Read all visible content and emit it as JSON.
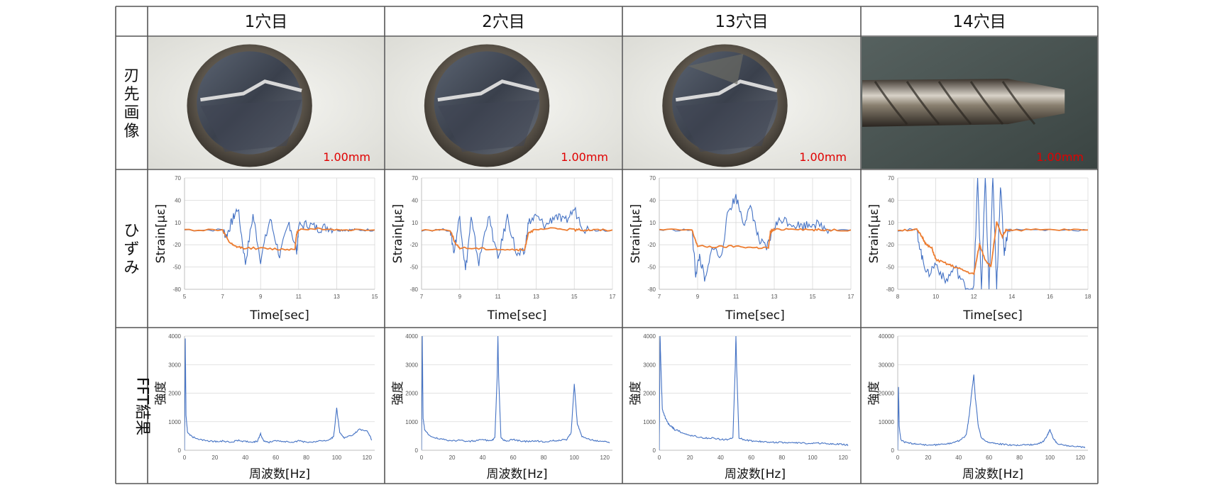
{
  "table": {
    "columns": [
      "1穴目",
      "2穴目",
      "13穴目",
      "14穴目"
    ],
    "rows": [
      "刃先画像",
      "ひずみ",
      "FFT結果"
    ],
    "scale_labels": [
      "1.00mm",
      "1.00mm",
      "1.00mm",
      "1.00mm"
    ]
  },
  "colors": {
    "blue": "#4472c4",
    "orange": "#ed7d31",
    "grid": "#d9d9d9",
    "scale": "#e00000"
  },
  "chart_data": [
    {
      "type": "line",
      "panel": "strain",
      "hole": "1穴目",
      "xlabel": "Time[sec]",
      "ylabel": "Strain[με]",
      "xticks": [
        5,
        7,
        9,
        11,
        13,
        15
      ],
      "yticks": [
        70,
        40,
        10,
        -20,
        -50,
        -80
      ],
      "xlim": [
        5,
        15
      ],
      "ylim": [
        -80,
        70
      ],
      "series": [
        {
          "color": "blue",
          "x": [
            5,
            7,
            7.2,
            7.5,
            7.8,
            8.2,
            8.6,
            9,
            9.5,
            10,
            10.5,
            10.9,
            11,
            11.5,
            12,
            12.5,
            13,
            13.5,
            14,
            15
          ],
          "y": [
            0,
            0,
            -8,
            12,
            30,
            -45,
            20,
            -40,
            15,
            -35,
            10,
            -30,
            5,
            8,
            2,
            4,
            0,
            0,
            0,
            0
          ]
        },
        {
          "color": "orange",
          "x": [
            5,
            7,
            7.3,
            7.6,
            8,
            9,
            10,
            10.8,
            10.9,
            11,
            12,
            13,
            15
          ],
          "y": [
            0,
            0,
            -15,
            -22,
            -24,
            -25,
            -26,
            -26,
            -5,
            0,
            2,
            0,
            0
          ]
        }
      ]
    },
    {
      "type": "line",
      "panel": "strain",
      "hole": "2穴目",
      "xlabel": "Time[sec]",
      "ylabel": "Strain[με]",
      "xticks": [
        7,
        9,
        11,
        13,
        15,
        17
      ],
      "yticks": [
        70,
        40,
        10,
        -20,
        -50,
        -80
      ],
      "xlim": [
        7,
        17
      ],
      "ylim": [
        -80,
        70
      ],
      "series": [
        {
          "color": "blue",
          "x": [
            7,
            8.5,
            8.7,
            9,
            9.3,
            9.6,
            10,
            10.5,
            11,
            11.5,
            12,
            12.4,
            12.6,
            13,
            13.5,
            14,
            14.5,
            15,
            15.5,
            16,
            17
          ],
          "y": [
            0,
            0,
            -30,
            20,
            -55,
            15,
            -45,
            20,
            -40,
            18,
            -35,
            -30,
            10,
            18,
            5,
            20,
            10,
            28,
            2,
            0,
            0
          ]
        },
        {
          "color": "orange",
          "x": [
            7,
            8.5,
            8.8,
            9,
            10,
            11,
            12,
            12.4,
            12.6,
            13,
            14,
            15,
            15.5,
            16,
            17
          ],
          "y": [
            0,
            0,
            -20,
            -24,
            -25,
            -26,
            -27,
            -27,
            -3,
            0,
            2,
            0,
            0,
            0,
            0
          ]
        }
      ]
    },
    {
      "type": "line",
      "panel": "strain",
      "hole": "13穴目",
      "xlabel": "Time[sec]",
      "ylabel": "Strain[με]",
      "xticks": [
        7,
        9,
        11,
        13,
        15,
        17
      ],
      "yticks": [
        70,
        40,
        10,
        -20,
        -50,
        -80
      ],
      "xlim": [
        7,
        17
      ],
      "ylim": [
        -80,
        70
      ],
      "series": [
        {
          "color": "blue",
          "x": [
            7,
            8.7,
            8.9,
            9.1,
            9.4,
            9.8,
            10.2,
            10.6,
            11,
            11.4,
            11.8,
            12.2,
            12.6,
            13,
            13.4,
            14,
            14.5,
            15,
            15.6,
            16,
            17
          ],
          "y": [
            0,
            0,
            -60,
            -35,
            -70,
            -20,
            -40,
            25,
            45,
            10,
            30,
            -15,
            -25,
            5,
            15,
            8,
            5,
            10,
            3,
            0,
            0
          ]
        },
        {
          "color": "orange",
          "x": [
            7,
            8.7,
            9,
            10,
            11,
            12,
            12.7,
            12.8,
            13,
            14,
            15,
            15.6,
            17
          ],
          "y": [
            0,
            0,
            -22,
            -23,
            -22,
            -24,
            -24,
            -2,
            0,
            2,
            0,
            0,
            0
          ]
        }
      ]
    },
    {
      "type": "line",
      "panel": "strain",
      "hole": "14穴目",
      "xlabel": "Time[sec]",
      "ylabel": "Strain[με]",
      "xticks": [
        8,
        10,
        12,
        14,
        16,
        18
      ],
      "yticks": [
        70,
        40,
        10,
        -20,
        -50,
        -80
      ],
      "xlim": [
        8,
        18
      ],
      "ylim": [
        -80,
        70
      ],
      "series": [
        {
          "color": "blue",
          "x": [
            8,
            9,
            9.3,
            9.6,
            10,
            10.5,
            11,
            11.5,
            12,
            12.2,
            12.4,
            12.6,
            12.8,
            13,
            13.2,
            13.4,
            13.6,
            13.8,
            14,
            16,
            18
          ],
          "y": [
            0,
            0,
            -40,
            -60,
            -45,
            -70,
            -50,
            -75,
            -80,
            70,
            -80,
            70,
            -80,
            70,
            -80,
            60,
            -30,
            0,
            0,
            0,
            0
          ]
        },
        {
          "color": "orange",
          "x": [
            8,
            9,
            9.3,
            9.5,
            9.8,
            10,
            10.5,
            11,
            11.5,
            12,
            12.3,
            12.6,
            12.9,
            13.2,
            13.5,
            13.7,
            14,
            16,
            18
          ],
          "y": [
            0,
            0,
            -10,
            -20,
            -25,
            -40,
            -45,
            -50,
            -55,
            -60,
            -20,
            -40,
            -50,
            10,
            -10,
            0,
            0,
            0,
            0
          ]
        }
      ]
    },
    {
      "type": "line",
      "panel": "fft",
      "hole": "1穴目",
      "xlabel": "周波数[Hz]",
      "ylabel": "強度",
      "xticks": [
        0,
        20,
        40,
        60,
        80,
        100,
        120
      ],
      "yticks": [
        0,
        1000,
        2000,
        3000,
        4000
      ],
      "xlim": [
        0,
        125
      ],
      "ylim": [
        0,
        4000
      ],
      "series": [
        {
          "color": "blue",
          "x": [
            0,
            0.5,
            1,
            2,
            5,
            10,
            15,
            20,
            25,
            30,
            35,
            40,
            45,
            48,
            50,
            52,
            55,
            60,
            65,
            70,
            75,
            80,
            85,
            90,
            95,
            98,
            100,
            102,
            105,
            110,
            115,
            120,
            123
          ],
          "y": [
            0,
            3900,
            1200,
            600,
            450,
            350,
            300,
            280,
            300,
            250,
            320,
            280,
            250,
            300,
            550,
            300,
            250,
            300,
            280,
            250,
            300,
            260,
            280,
            300,
            320,
            450,
            1450,
            600,
            400,
            500,
            700,
            650,
            350
          ]
        }
      ]
    },
    {
      "type": "line",
      "panel": "fft",
      "hole": "2穴目",
      "xlabel": "周波数[Hz]",
      "ylabel": "強度",
      "xticks": [
        0,
        20,
        40,
        60,
        80,
        100,
        120
      ],
      "yticks": [
        0,
        1000,
        2000,
        3000,
        4000
      ],
      "xlim": [
        0,
        125
      ],
      "ylim": [
        0,
        4000
      ],
      "series": [
        {
          "color": "blue",
          "x": [
            0,
            0.5,
            1,
            2,
            5,
            10,
            15,
            20,
            25,
            30,
            35,
            40,
            45,
            48,
            49.5,
            50,
            50.5,
            52,
            55,
            60,
            65,
            70,
            75,
            80,
            85,
            90,
            95,
            98,
            100,
            102,
            105,
            110,
            115,
            120,
            123
          ],
          "y": [
            0,
            4000,
            1100,
            700,
            500,
            400,
            350,
            300,
            320,
            280,
            300,
            350,
            300,
            400,
            2500,
            4000,
            2500,
            400,
            300,
            350,
            300,
            280,
            300,
            270,
            300,
            320,
            350,
            600,
            2300,
            900,
            450,
            350,
            300,
            280,
            250
          ]
        }
      ]
    },
    {
      "type": "line",
      "panel": "fft",
      "hole": "13穴目",
      "xlabel": "周波数[Hz]",
      "ylabel": "強度",
      "xticks": [
        0,
        20,
        40,
        60,
        80,
        100,
        120
      ],
      "yticks": [
        0,
        1000,
        2000,
        3000,
        4000
      ],
      "xlim": [
        0,
        125
      ],
      "ylim": [
        0,
        4000
      ],
      "series": [
        {
          "color": "blue",
          "x": [
            0,
            0.5,
            1,
            2,
            4,
            6,
            8,
            10,
            15,
            20,
            25,
            30,
            35,
            40,
            45,
            48,
            49.5,
            50,
            50.5,
            52,
            55,
            60,
            65,
            70,
            75,
            80,
            85,
            90,
            95,
            100,
            105,
            110,
            115,
            120,
            123
          ],
          "y": [
            0,
            4000,
            3000,
            1400,
            1100,
            900,
            800,
            700,
            600,
            500,
            450,
            400,
            400,
            350,
            350,
            400,
            2800,
            4000,
            2800,
            400,
            350,
            300,
            280,
            260,
            250,
            250,
            240,
            230,
            220,
            210,
            220,
            200,
            190,
            180,
            150
          ]
        }
      ]
    },
    {
      "type": "line",
      "panel": "fft",
      "hole": "14穴目",
      "xlabel": "周波数[Hz]",
      "ylabel": "強度",
      "xticks": [
        0,
        20,
        40,
        60,
        80,
        100,
        120
      ],
      "yticks": [
        0,
        10000,
        20000,
        30000,
        40000
      ],
      "xlim": [
        0,
        125
      ],
      "ylim": [
        0,
        40000
      ],
      "series": [
        {
          "color": "blue",
          "x": [
            0,
            0.5,
            1,
            2,
            5,
            10,
            15,
            20,
            25,
            30,
            35,
            40,
            45,
            47,
            49,
            50,
            51,
            53,
            55,
            60,
            65,
            70,
            75,
            80,
            85,
            90,
            95,
            98,
            100,
            102,
            105,
            110,
            115,
            120,
            123
          ],
          "y": [
            0,
            22000,
            8000,
            3500,
            2500,
            2000,
            1800,
            1500,
            1600,
            1800,
            2200,
            3000,
            5000,
            12000,
            22000,
            26000,
            18000,
            8000,
            4000,
            2500,
            2000,
            1800,
            1500,
            1500,
            1600,
            1800,
            2500,
            4500,
            7000,
            4000,
            2000,
            1500,
            1200,
            1000,
            800
          ]
        }
      ]
    }
  ]
}
